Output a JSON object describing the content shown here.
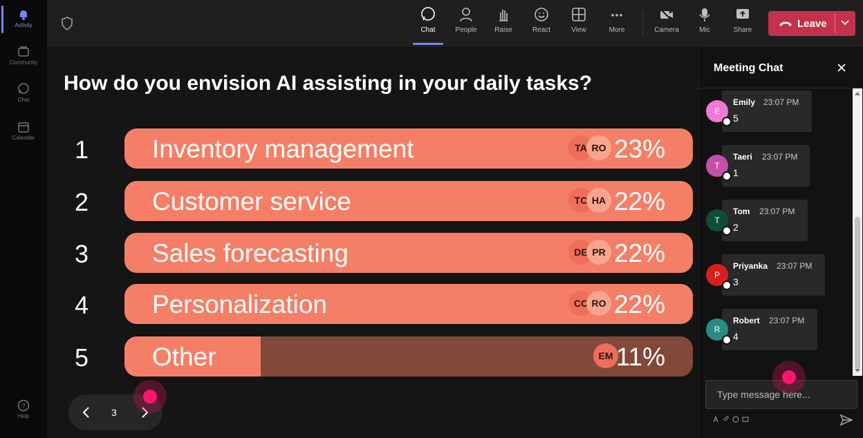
{
  "rail": {
    "items": [
      {
        "label": "Activity",
        "icon": "bell-icon"
      },
      {
        "label": "Community",
        "icon": "community-icon"
      },
      {
        "label": "Chat",
        "icon": "chat-icon"
      },
      {
        "label": "Calendar",
        "icon": "calendar-icon"
      }
    ],
    "help": {
      "label": "Help",
      "icon": "help-icon"
    }
  },
  "toolbar": {
    "items": [
      {
        "label": "Chat",
        "icon": "chat-icon"
      },
      {
        "label": "People",
        "icon": "people-icon"
      },
      {
        "label": "Raise",
        "icon": "raise-hand-icon"
      },
      {
        "label": "React",
        "icon": "smiley-icon"
      },
      {
        "label": "View",
        "icon": "grid-view-icon"
      },
      {
        "label": "More",
        "icon": "more-icon"
      },
      {
        "label": "Camera",
        "icon": "camera-off-icon"
      },
      {
        "label": "Mic",
        "icon": "mic-icon"
      },
      {
        "label": "Share",
        "icon": "share-icon"
      }
    ],
    "leave_label": "Leave"
  },
  "poll": {
    "question": "How do you envision AI assisting in your daily tasks?",
    "options": [
      {
        "num": "1",
        "label": "Inventory management",
        "percent": "23%",
        "value": 23,
        "avatars": [
          "TA",
          "RO"
        ]
      },
      {
        "num": "2",
        "label": "Customer service",
        "percent": "22%",
        "value": 22,
        "avatars": [
          "TC",
          "HA"
        ]
      },
      {
        "num": "3",
        "label": "Sales forecasting",
        "percent": "22%",
        "value": 22,
        "avatars": [
          "DE",
          "PR"
        ]
      },
      {
        "num": "4",
        "label": "Personalization",
        "percent": "22%",
        "value": 22,
        "avatars": [
          "CC",
          "RO"
        ]
      },
      {
        "num": "5",
        "label": "Other",
        "percent": "11%",
        "value": 11,
        "avatars": [
          "EM"
        ]
      }
    ],
    "colors": {
      "fill": "#f47f66",
      "track": "#824839"
    }
  },
  "pager": {
    "page": "3"
  },
  "chat": {
    "title": "Meeting Chat",
    "messages": [
      {
        "initial": "E",
        "name": "Emily",
        "time": "23:07 PM",
        "text": "5",
        "color": "#f07ad6"
      },
      {
        "initial": "T",
        "name": "Taeri",
        "time": "23:07 PM",
        "text": "1",
        "color": "#c350a8"
      },
      {
        "initial": "T",
        "name": "Tom",
        "time": "23:07 PM",
        "text": "2",
        "color": "#0e4d3a"
      },
      {
        "initial": "P",
        "name": "Priyanka",
        "time": "23:07 PM",
        "text": "3",
        "color": "#d62020"
      },
      {
        "initial": "R",
        "name": "Robert",
        "time": "23:07 PM",
        "text": "4",
        "color": "#2a8a84"
      }
    ],
    "placeholder": "Type message here..."
  }
}
